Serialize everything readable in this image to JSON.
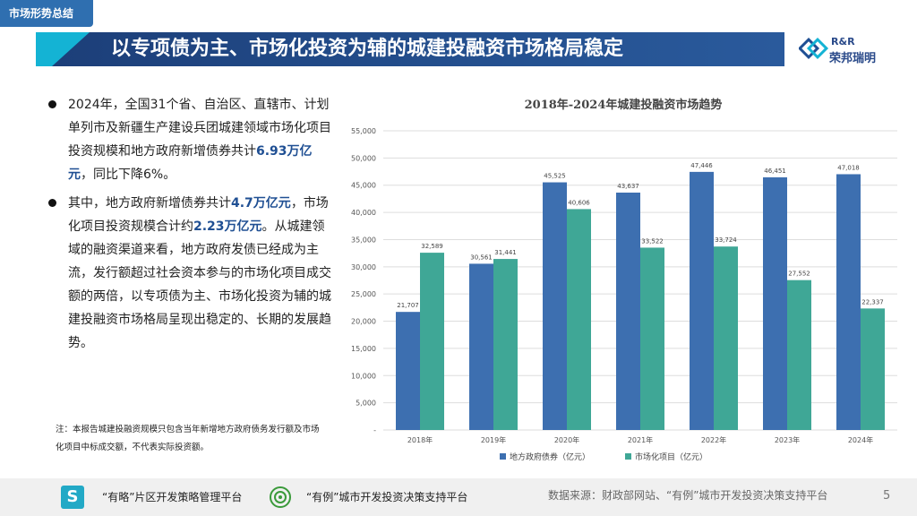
{
  "section_tag": "市场形势总结",
  "page_title": "以专项债为主、市场化投资为辅的城建投融资市场格局稳定",
  "logo": {
    "en": "R&R",
    "cn": "荣邦瑞明"
  },
  "bullets": [
    {
      "text_before": "2024年，全国31个省、自治区、直辖市、计划单列市及新疆生产建设兵团城建领域市场化项目投资规模和地方政府新增债券共计",
      "highlight": "6.93万亿元",
      "text_after": "，同比下降6%。"
    },
    {
      "text_before": "其中，地方政府新增债券共计",
      "highlight": "4.7万亿元",
      "text_mid": "，市场化项目投资规模合计约",
      "highlight2": "2.23万亿元",
      "text_after": "。从城建领域的融资渠道来看，地方政府发债已经成为主流，发行额超过社会资本参与的市场化项目成交额的两倍，以专项债为主、市场化投资为辅的城建投融资市场格局呈现出稳定的、长期的发展趋势。"
    }
  ],
  "note": "注：本报告城建投融资规模只包含当年新增地方政府债务发行额及市场化项目中标成交额，不代表实际投资额。",
  "chart_data": {
    "type": "bar",
    "title": "2018年-2024年城建投融资市场趋势",
    "categories": [
      "2018年",
      "2019年",
      "2020年",
      "2021年",
      "2022年",
      "2023年",
      "2024年"
    ],
    "series": [
      {
        "name": "地方政府债券（亿元）",
        "color": "#3d6fb0",
        "values": [
          21707,
          30561,
          45525,
          43637,
          47446,
          46451,
          47018
        ],
        "labels": [
          "21,707",
          "30,561",
          "45,525",
          "43,637",
          "47,446",
          "46,451",
          "47,018"
        ]
      },
      {
        "name": "市场化项目（亿元）",
        "color": "#3fa796",
        "values": [
          32589,
          31441,
          40606,
          33522,
          33724,
          27552,
          22337
        ],
        "labels": [
          "32,589",
          "31,441",
          "40,606",
          "33,522",
          "33,724",
          "27,552",
          "22,337"
        ]
      }
    ],
    "ylim": [
      0,
      55000
    ],
    "yticks": [
      0,
      5000,
      10000,
      15000,
      20000,
      25000,
      30000,
      35000,
      40000,
      45000,
      50000,
      55000
    ],
    "ytick_labels": [
      "-",
      "5,000",
      "10,000",
      "15,000",
      "20,000",
      "25,000",
      "30,000",
      "35,000",
      "40,000",
      "45,000",
      "50,000",
      "55,000"
    ],
    "grid": true,
    "legend": "bottom"
  },
  "footer": {
    "platform1": "“有略”片区开发策略管理平台",
    "platform2": "“有例”城市开发投资决策支持平台",
    "source": "数据来源：财政部网站、“有例”城市开发投资决策支持平台",
    "page_number": "5"
  }
}
